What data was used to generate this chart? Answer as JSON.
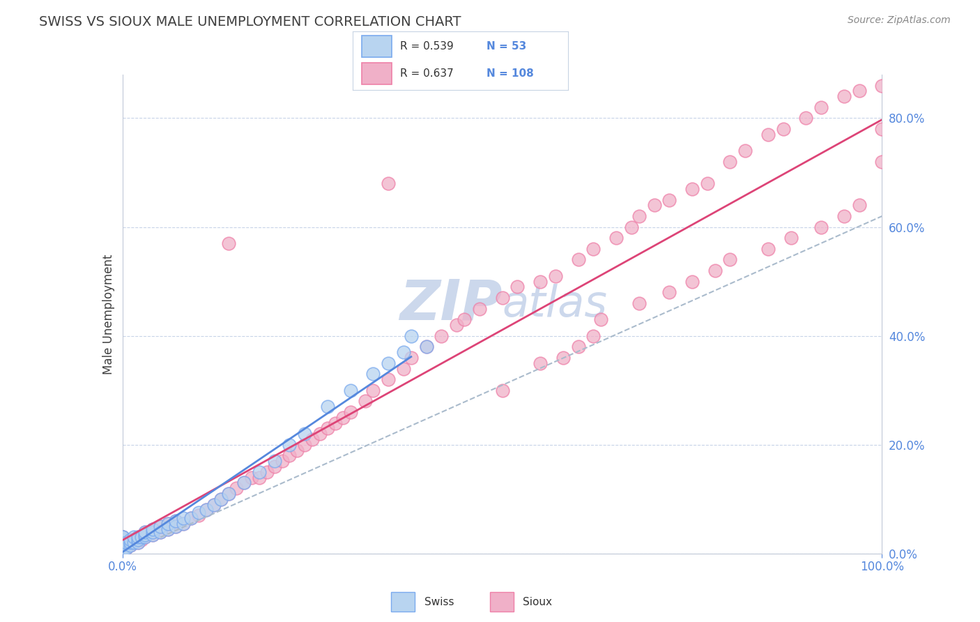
{
  "title": "SWISS VS SIOUX MALE UNEMPLOYMENT CORRELATION CHART",
  "source": "Source: ZipAtlas.com",
  "ylabel": "Male Unemployment",
  "legend_swiss_R": "0.539",
  "legend_swiss_N": "53",
  "legend_sioux_R": "0.637",
  "legend_sioux_N": "108",
  "swiss_fill_color": "#b8d4f0",
  "sioux_fill_color": "#f0b0c8",
  "swiss_edge_color": "#7aaaee",
  "sioux_edge_color": "#ee80a8",
  "swiss_line_color": "#5588dd",
  "sioux_line_color": "#dd4477",
  "dash_line_color": "#aabbcc",
  "background_color": "#ffffff",
  "grid_color": "#c8d4e8",
  "title_color": "#404040",
  "axis_label_color": "#404040",
  "tick_color": "#5588dd",
  "source_color": "#888888",
  "watermark_color": "#ccd8ec",
  "xmin": 0.0,
  "xmax": 1.0,
  "ymin": 0.0,
  "ymax": 0.88,
  "yticks": [
    0.0,
    0.2,
    0.4,
    0.6,
    0.8
  ],
  "xticks": [
    0.0,
    1.0
  ],
  "swiss_x": [
    0.0,
    0.0,
    0.0,
    0.0,
    0.0,
    0.0,
    0.0,
    0.0,
    0.0,
    0.0,
    0.005,
    0.005,
    0.01,
    0.01,
    0.01,
    0.015,
    0.015,
    0.02,
    0.02,
    0.02,
    0.025,
    0.03,
    0.03,
    0.03,
    0.04,
    0.04,
    0.04,
    0.05,
    0.05,
    0.06,
    0.06,
    0.07,
    0.07,
    0.08,
    0.08,
    0.09,
    0.1,
    0.11,
    0.12,
    0.13,
    0.14,
    0.16,
    0.18,
    0.2,
    0.22,
    0.24,
    0.27,
    0.3,
    0.33,
    0.35,
    0.37,
    0.38,
    0.4
  ],
  "swiss_y": [
    0.0,
    0.005,
    0.01,
    0.01,
    0.015,
    0.02,
    0.02,
    0.025,
    0.03,
    0.03,
    0.01,
    0.02,
    0.015,
    0.02,
    0.025,
    0.02,
    0.03,
    0.02,
    0.025,
    0.03,
    0.03,
    0.03,
    0.035,
    0.04,
    0.035,
    0.04,
    0.045,
    0.04,
    0.05,
    0.045,
    0.055,
    0.05,
    0.06,
    0.055,
    0.065,
    0.065,
    0.075,
    0.08,
    0.09,
    0.1,
    0.11,
    0.13,
    0.15,
    0.17,
    0.2,
    0.22,
    0.27,
    0.3,
    0.33,
    0.35,
    0.37,
    0.4,
    0.38
  ],
  "sioux_x": [
    0.0,
    0.0,
    0.0,
    0.0,
    0.0,
    0.0,
    0.0,
    0.0,
    0.0,
    0.0,
    0.005,
    0.005,
    0.01,
    0.01,
    0.01,
    0.015,
    0.015,
    0.02,
    0.02,
    0.02,
    0.025,
    0.03,
    0.03,
    0.03,
    0.04,
    0.04,
    0.04,
    0.05,
    0.05,
    0.06,
    0.06,
    0.07,
    0.07,
    0.08,
    0.09,
    0.1,
    0.11,
    0.12,
    0.13,
    0.14,
    0.15,
    0.16,
    0.17,
    0.18,
    0.19,
    0.2,
    0.21,
    0.22,
    0.23,
    0.24,
    0.25,
    0.26,
    0.27,
    0.28,
    0.29,
    0.3,
    0.32,
    0.33,
    0.35,
    0.37,
    0.38,
    0.4,
    0.42,
    0.44,
    0.45,
    0.47,
    0.5,
    0.52,
    0.55,
    0.57,
    0.6,
    0.62,
    0.65,
    0.67,
    0.68,
    0.7,
    0.72,
    0.75,
    0.77,
    0.8,
    0.82,
    0.85,
    0.87,
    0.9,
    0.92,
    0.95,
    0.97,
    1.0,
    1.0,
    1.0,
    0.14,
    0.35,
    0.5,
    0.55,
    0.58,
    0.6,
    0.62,
    0.63,
    0.68,
    0.72,
    0.75,
    0.78,
    0.8,
    0.85,
    0.88,
    0.92,
    0.95,
    0.97
  ],
  "sioux_y": [
    0.0,
    0.005,
    0.01,
    0.01,
    0.015,
    0.02,
    0.02,
    0.025,
    0.03,
    0.03,
    0.01,
    0.02,
    0.015,
    0.02,
    0.025,
    0.02,
    0.025,
    0.02,
    0.025,
    0.03,
    0.025,
    0.03,
    0.035,
    0.04,
    0.035,
    0.04,
    0.045,
    0.04,
    0.05,
    0.045,
    0.055,
    0.05,
    0.06,
    0.055,
    0.065,
    0.07,
    0.08,
    0.09,
    0.1,
    0.11,
    0.12,
    0.13,
    0.14,
    0.14,
    0.15,
    0.16,
    0.17,
    0.18,
    0.19,
    0.2,
    0.21,
    0.22,
    0.23,
    0.24,
    0.25,
    0.26,
    0.28,
    0.3,
    0.32,
    0.34,
    0.36,
    0.38,
    0.4,
    0.42,
    0.43,
    0.45,
    0.47,
    0.49,
    0.5,
    0.51,
    0.54,
    0.56,
    0.58,
    0.6,
    0.62,
    0.64,
    0.65,
    0.67,
    0.68,
    0.72,
    0.74,
    0.77,
    0.78,
    0.8,
    0.82,
    0.84,
    0.85,
    0.86,
    0.78,
    0.72,
    0.57,
    0.68,
    0.3,
    0.35,
    0.36,
    0.38,
    0.4,
    0.43,
    0.46,
    0.48,
    0.5,
    0.52,
    0.54,
    0.56,
    0.58,
    0.6,
    0.62,
    0.64
  ],
  "swiss_reg": [
    0.0,
    0.4,
    0.0,
    0.4
  ],
  "sioux_reg": [
    0.0,
    1.0,
    0.05,
    0.42
  ],
  "dash_reg": [
    0.0,
    1.0,
    0.0,
    0.62
  ]
}
